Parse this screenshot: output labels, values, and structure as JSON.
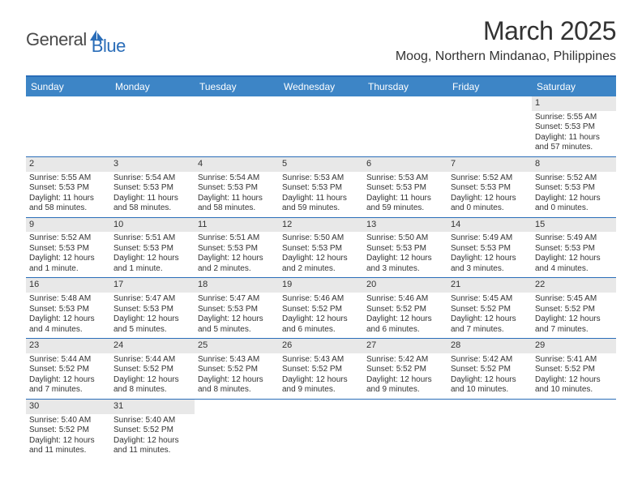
{
  "logo": {
    "dark": "Genera",
    "blue": "Blue",
    "l": "l"
  },
  "title": "March 2025",
  "location": "Moog, Northern Mindanao, Philippines",
  "colors": {
    "header_bg": "#3d85c6",
    "border": "#2a6db8",
    "daynum_bg": "#e8e8e8",
    "text": "#333333"
  },
  "day_headers": [
    "Sunday",
    "Monday",
    "Tuesday",
    "Wednesday",
    "Thursday",
    "Friday",
    "Saturday"
  ],
  "weeks": [
    [
      null,
      null,
      null,
      null,
      null,
      null,
      {
        "n": "1",
        "sr": "5:55 AM",
        "ss": "5:53 PM",
        "dl": "11 hours and 57 minutes."
      }
    ],
    [
      {
        "n": "2",
        "sr": "5:55 AM",
        "ss": "5:53 PM",
        "dl": "11 hours and 58 minutes."
      },
      {
        "n": "3",
        "sr": "5:54 AM",
        "ss": "5:53 PM",
        "dl": "11 hours and 58 minutes."
      },
      {
        "n": "4",
        "sr": "5:54 AM",
        "ss": "5:53 PM",
        "dl": "11 hours and 58 minutes."
      },
      {
        "n": "5",
        "sr": "5:53 AM",
        "ss": "5:53 PM",
        "dl": "11 hours and 59 minutes."
      },
      {
        "n": "6",
        "sr": "5:53 AM",
        "ss": "5:53 PM",
        "dl": "11 hours and 59 minutes."
      },
      {
        "n": "7",
        "sr": "5:52 AM",
        "ss": "5:53 PM",
        "dl": "12 hours and 0 minutes."
      },
      {
        "n": "8",
        "sr": "5:52 AM",
        "ss": "5:53 PM",
        "dl": "12 hours and 0 minutes."
      }
    ],
    [
      {
        "n": "9",
        "sr": "5:52 AM",
        "ss": "5:53 PM",
        "dl": "12 hours and 1 minute."
      },
      {
        "n": "10",
        "sr": "5:51 AM",
        "ss": "5:53 PM",
        "dl": "12 hours and 1 minute."
      },
      {
        "n": "11",
        "sr": "5:51 AM",
        "ss": "5:53 PM",
        "dl": "12 hours and 2 minutes."
      },
      {
        "n": "12",
        "sr": "5:50 AM",
        "ss": "5:53 PM",
        "dl": "12 hours and 2 minutes."
      },
      {
        "n": "13",
        "sr": "5:50 AM",
        "ss": "5:53 PM",
        "dl": "12 hours and 3 minutes."
      },
      {
        "n": "14",
        "sr": "5:49 AM",
        "ss": "5:53 PM",
        "dl": "12 hours and 3 minutes."
      },
      {
        "n": "15",
        "sr": "5:49 AM",
        "ss": "5:53 PM",
        "dl": "12 hours and 4 minutes."
      }
    ],
    [
      {
        "n": "16",
        "sr": "5:48 AM",
        "ss": "5:53 PM",
        "dl": "12 hours and 4 minutes."
      },
      {
        "n": "17",
        "sr": "5:47 AM",
        "ss": "5:53 PM",
        "dl": "12 hours and 5 minutes."
      },
      {
        "n": "18",
        "sr": "5:47 AM",
        "ss": "5:53 PM",
        "dl": "12 hours and 5 minutes."
      },
      {
        "n": "19",
        "sr": "5:46 AM",
        "ss": "5:52 PM",
        "dl": "12 hours and 6 minutes."
      },
      {
        "n": "20",
        "sr": "5:46 AM",
        "ss": "5:52 PM",
        "dl": "12 hours and 6 minutes."
      },
      {
        "n": "21",
        "sr": "5:45 AM",
        "ss": "5:52 PM",
        "dl": "12 hours and 7 minutes."
      },
      {
        "n": "22",
        "sr": "5:45 AM",
        "ss": "5:52 PM",
        "dl": "12 hours and 7 minutes."
      }
    ],
    [
      {
        "n": "23",
        "sr": "5:44 AM",
        "ss": "5:52 PM",
        "dl": "12 hours and 7 minutes."
      },
      {
        "n": "24",
        "sr": "5:44 AM",
        "ss": "5:52 PM",
        "dl": "12 hours and 8 minutes."
      },
      {
        "n": "25",
        "sr": "5:43 AM",
        "ss": "5:52 PM",
        "dl": "12 hours and 8 minutes."
      },
      {
        "n": "26",
        "sr": "5:43 AM",
        "ss": "5:52 PM",
        "dl": "12 hours and 9 minutes."
      },
      {
        "n": "27",
        "sr": "5:42 AM",
        "ss": "5:52 PM",
        "dl": "12 hours and 9 minutes."
      },
      {
        "n": "28",
        "sr": "5:42 AM",
        "ss": "5:52 PM",
        "dl": "12 hours and 10 minutes."
      },
      {
        "n": "29",
        "sr": "5:41 AM",
        "ss": "5:52 PM",
        "dl": "12 hours and 10 minutes."
      }
    ],
    [
      {
        "n": "30",
        "sr": "5:40 AM",
        "ss": "5:52 PM",
        "dl": "12 hours and 11 minutes."
      },
      {
        "n": "31",
        "sr": "5:40 AM",
        "ss": "5:52 PM",
        "dl": "12 hours and 11 minutes."
      },
      null,
      null,
      null,
      null,
      null
    ]
  ],
  "labels": {
    "sunrise": "Sunrise:",
    "sunset": "Sunset:",
    "daylight": "Daylight:"
  }
}
